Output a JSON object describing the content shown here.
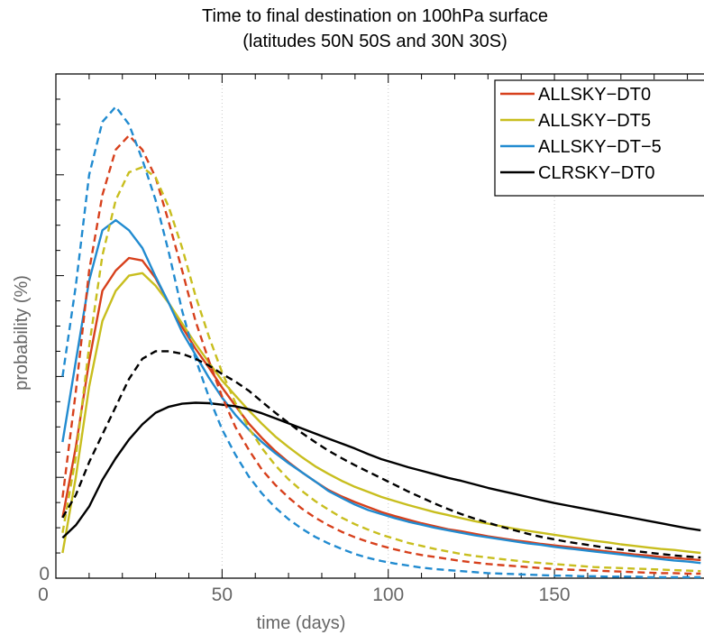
{
  "chart_data": {
    "type": "line",
    "title": "Time to final destination on 100hPa surface",
    "subtitle": "(latitudes 50N 50S and 30N 30S)",
    "xlabel": "time (days)",
    "ylabel": "probability (%)",
    "xlim": [
      0,
      195
    ],
    "ylim": [
      0,
      10
    ],
    "xticks": [
      0,
      50,
      100,
      150
    ],
    "yticks": [
      0
    ],
    "grid": "x-dotted",
    "legend_position": "top-right",
    "series": [
      {
        "name": "ALLSKY−DT0",
        "style": "solid",
        "color": "#d7401c",
        "legend": true,
        "x": [
          2,
          6,
          10,
          14,
          18,
          22,
          26,
          30,
          34,
          38,
          42,
          46,
          50,
          54,
          58,
          62,
          66,
          70,
          74,
          78,
          82,
          86,
          90,
          94,
          98,
          102,
          106,
          110,
          114,
          118,
          122,
          126,
          130,
          134,
          138,
          142,
          146,
          150,
          154,
          158,
          162,
          166,
          170,
          174,
          178,
          182,
          186,
          190,
          194
        ],
        "y": [
          1.2,
          2.6,
          4.3,
          5.7,
          6.1,
          6.35,
          6.3,
          5.95,
          5.45,
          4.98,
          4.55,
          4.18,
          3.78,
          3.42,
          3.07,
          2.78,
          2.52,
          2.3,
          2.1,
          1.92,
          1.75,
          1.62,
          1.51,
          1.41,
          1.31,
          1.23,
          1.16,
          1.09,
          1.03,
          0.97,
          0.93,
          0.88,
          0.83,
          0.79,
          0.75,
          0.72,
          0.68,
          0.65,
          0.62,
          0.59,
          0.56,
          0.53,
          0.5,
          0.47,
          0.45,
          0.42,
          0.4,
          0.38,
          0.36
        ]
      },
      {
        "name": "ALLSKY−DT5",
        "style": "solid",
        "color": "#c8be1e",
        "legend": true,
        "x": [
          2,
          6,
          10,
          14,
          18,
          22,
          26,
          30,
          34,
          38,
          42,
          46,
          50,
          54,
          58,
          62,
          66,
          70,
          74,
          78,
          82,
          86,
          90,
          94,
          98,
          102,
          106,
          110,
          114,
          118,
          122,
          126,
          130,
          134,
          138,
          142,
          146,
          150,
          154,
          158,
          162,
          166,
          170,
          174,
          178,
          182,
          186,
          190,
          194
        ],
        "y": [
          0.5,
          2.0,
          3.8,
          5.1,
          5.7,
          6.0,
          6.05,
          5.8,
          5.45,
          5.05,
          4.65,
          4.28,
          3.92,
          3.62,
          3.33,
          3.06,
          2.81,
          2.6,
          2.4,
          2.22,
          2.07,
          1.93,
          1.81,
          1.71,
          1.61,
          1.53,
          1.45,
          1.38,
          1.31,
          1.25,
          1.19,
          1.13,
          1.08,
          1.03,
          0.98,
          0.94,
          0.9,
          0.86,
          0.82,
          0.78,
          0.74,
          0.71,
          0.67,
          0.64,
          0.61,
          0.58,
          0.56,
          0.53,
          0.5
        ]
      },
      {
        "name": "ALLSKY−DT−5",
        "style": "solid",
        "color": "#218bd0",
        "legend": true,
        "x": [
          2,
          6,
          10,
          14,
          18,
          22,
          26,
          30,
          34,
          38,
          42,
          46,
          50,
          54,
          58,
          62,
          66,
          70,
          74,
          78,
          82,
          86,
          90,
          94,
          98,
          102,
          106,
          110,
          114,
          118,
          122,
          126,
          130,
          134,
          138,
          142,
          146,
          150,
          154,
          158,
          162,
          166,
          170,
          174,
          178,
          182,
          186,
          190,
          194
        ],
        "y": [
          2.7,
          4.3,
          5.9,
          6.9,
          7.1,
          6.9,
          6.55,
          5.98,
          5.45,
          4.88,
          4.43,
          3.98,
          3.58,
          3.24,
          2.95,
          2.7,
          2.48,
          2.28,
          2.1,
          1.92,
          1.73,
          1.59,
          1.46,
          1.35,
          1.27,
          1.19,
          1.12,
          1.06,
          1.0,
          0.95,
          0.9,
          0.85,
          0.81,
          0.77,
          0.73,
          0.69,
          0.66,
          0.62,
          0.59,
          0.56,
          0.53,
          0.5,
          0.47,
          0.44,
          0.41,
          0.38,
          0.35,
          0.33,
          0.3
        ]
      },
      {
        "name": "CLRSKY−DT0",
        "style": "solid",
        "color": "#000000",
        "legend": true,
        "x": [
          2,
          6,
          10,
          14,
          18,
          22,
          26,
          30,
          34,
          38,
          42,
          46,
          50,
          54,
          58,
          62,
          66,
          70,
          74,
          78,
          82,
          86,
          90,
          94,
          98,
          102,
          106,
          110,
          114,
          118,
          122,
          126,
          130,
          134,
          138,
          142,
          146,
          150,
          154,
          158,
          162,
          166,
          170,
          174,
          178,
          182,
          186,
          190,
          194
        ],
        "y": [
          0.8,
          1.05,
          1.42,
          1.95,
          2.38,
          2.75,
          3.05,
          3.28,
          3.4,
          3.46,
          3.48,
          3.47,
          3.44,
          3.41,
          3.35,
          3.27,
          3.17,
          3.07,
          2.97,
          2.87,
          2.77,
          2.67,
          2.57,
          2.46,
          2.36,
          2.28,
          2.2,
          2.13,
          2.06,
          1.99,
          1.93,
          1.86,
          1.79,
          1.73,
          1.67,
          1.61,
          1.55,
          1.49,
          1.44,
          1.39,
          1.34,
          1.29,
          1.24,
          1.19,
          1.14,
          1.09,
          1.04,
          0.99,
          0.95
        ]
      },
      {
        "name": "",
        "style": "dashed",
        "color": "#d7401c",
        "legend": false,
        "x": [
          2,
          6,
          10,
          14,
          18,
          22,
          26,
          30,
          34,
          38,
          42,
          46,
          50,
          54,
          58,
          62,
          66,
          70,
          74,
          78,
          82,
          86,
          90,
          94,
          98,
          102,
          106,
          110,
          114,
          118,
          122,
          126,
          130,
          134,
          138,
          142,
          146,
          150,
          154,
          158,
          162,
          166,
          170,
          174,
          178,
          182,
          186,
          190,
          194
        ],
        "y": [
          1.6,
          3.7,
          6.1,
          7.6,
          8.5,
          8.78,
          8.5,
          7.95,
          7.05,
          6.1,
          5.1,
          4.32,
          3.6,
          3.0,
          2.55,
          2.15,
          1.85,
          1.6,
          1.38,
          1.2,
          1.05,
          0.92,
          0.81,
          0.72,
          0.64,
          0.57,
          0.51,
          0.46,
          0.42,
          0.38,
          0.34,
          0.31,
          0.28,
          0.26,
          0.24,
          0.22,
          0.2,
          0.18,
          0.17,
          0.16,
          0.15,
          0.14,
          0.13,
          0.12,
          0.11,
          0.1,
          0.1,
          0.09,
          0.09
        ]
      },
      {
        "name": "",
        "style": "dashed",
        "color": "#c8be1e",
        "legend": false,
        "x": [
          2,
          6,
          10,
          14,
          18,
          22,
          26,
          30,
          34,
          38,
          42,
          46,
          50,
          54,
          58,
          62,
          66,
          70,
          74,
          78,
          82,
          86,
          90,
          94,
          98,
          102,
          106,
          110,
          114,
          118,
          122,
          126,
          130,
          134,
          138,
          142,
          146,
          150,
          154,
          158,
          162,
          166,
          170,
          174,
          178,
          182,
          186,
          190,
          194
        ],
        "y": [
          0.9,
          2.4,
          4.6,
          6.4,
          7.5,
          8.05,
          8.15,
          7.95,
          7.35,
          6.55,
          5.6,
          4.8,
          4.08,
          3.48,
          2.98,
          2.58,
          2.24,
          1.96,
          1.73,
          1.53,
          1.36,
          1.2,
          1.07,
          0.96,
          0.86,
          0.78,
          0.7,
          0.64,
          0.58,
          0.53,
          0.48,
          0.44,
          0.41,
          0.38,
          0.35,
          0.32,
          0.3,
          0.28,
          0.26,
          0.24,
          0.22,
          0.21,
          0.2,
          0.19,
          0.18,
          0.17,
          0.16,
          0.15,
          0.14
        ]
      },
      {
        "name": "",
        "style": "dashed",
        "color": "#218bd0",
        "legend": false,
        "x": [
          2,
          6,
          10,
          14,
          18,
          22,
          26,
          30,
          34,
          38,
          42,
          46,
          50,
          54,
          58,
          62,
          66,
          70,
          74,
          78,
          82,
          86,
          90,
          94,
          98,
          102,
          106,
          110,
          114,
          118,
          122,
          126,
          130,
          134,
          138,
          142,
          146,
          150,
          154,
          158,
          162,
          166,
          170,
          174,
          178,
          182,
          186,
          190,
          194
        ],
        "y": [
          4.0,
          5.8,
          8.0,
          9.05,
          9.35,
          9.0,
          8.3,
          7.5,
          6.45,
          5.3,
          4.35,
          3.6,
          2.95,
          2.45,
          2.02,
          1.68,
          1.4,
          1.17,
          0.98,
          0.82,
          0.69,
          0.58,
          0.48,
          0.4,
          0.34,
          0.29,
          0.25,
          0.21,
          0.18,
          0.16,
          0.14,
          0.12,
          0.1,
          0.09,
          0.08,
          0.07,
          0.06,
          0.05,
          0.05,
          0.04,
          0.04,
          0.03,
          0.03,
          0.03,
          0.02,
          0.02,
          0.02,
          0.02,
          0.02
        ]
      },
      {
        "name": "",
        "style": "dashed",
        "color": "#000000",
        "legend": false,
        "x": [
          2,
          6,
          10,
          14,
          18,
          22,
          26,
          30,
          34,
          38,
          42,
          46,
          50,
          54,
          58,
          62,
          66,
          70,
          74,
          78,
          82,
          86,
          90,
          94,
          98,
          102,
          106,
          110,
          114,
          118,
          122,
          126,
          130,
          134,
          138,
          142,
          146,
          150,
          154,
          158,
          162,
          166,
          170,
          174,
          178,
          182,
          186,
          190,
          194
        ],
        "y": [
          1.2,
          1.65,
          2.3,
          2.85,
          3.4,
          3.95,
          4.35,
          4.5,
          4.5,
          4.45,
          4.35,
          4.22,
          4.05,
          3.9,
          3.72,
          3.5,
          3.28,
          3.08,
          2.88,
          2.7,
          2.53,
          2.38,
          2.24,
          2.11,
          1.98,
          1.85,
          1.72,
          1.6,
          1.48,
          1.37,
          1.27,
          1.18,
          1.1,
          1.02,
          0.95,
          0.88,
          0.82,
          0.77,
          0.72,
          0.68,
          0.64,
          0.6,
          0.57,
          0.54,
          0.51,
          0.48,
          0.45,
          0.43,
          0.41
        ]
      }
    ]
  }
}
